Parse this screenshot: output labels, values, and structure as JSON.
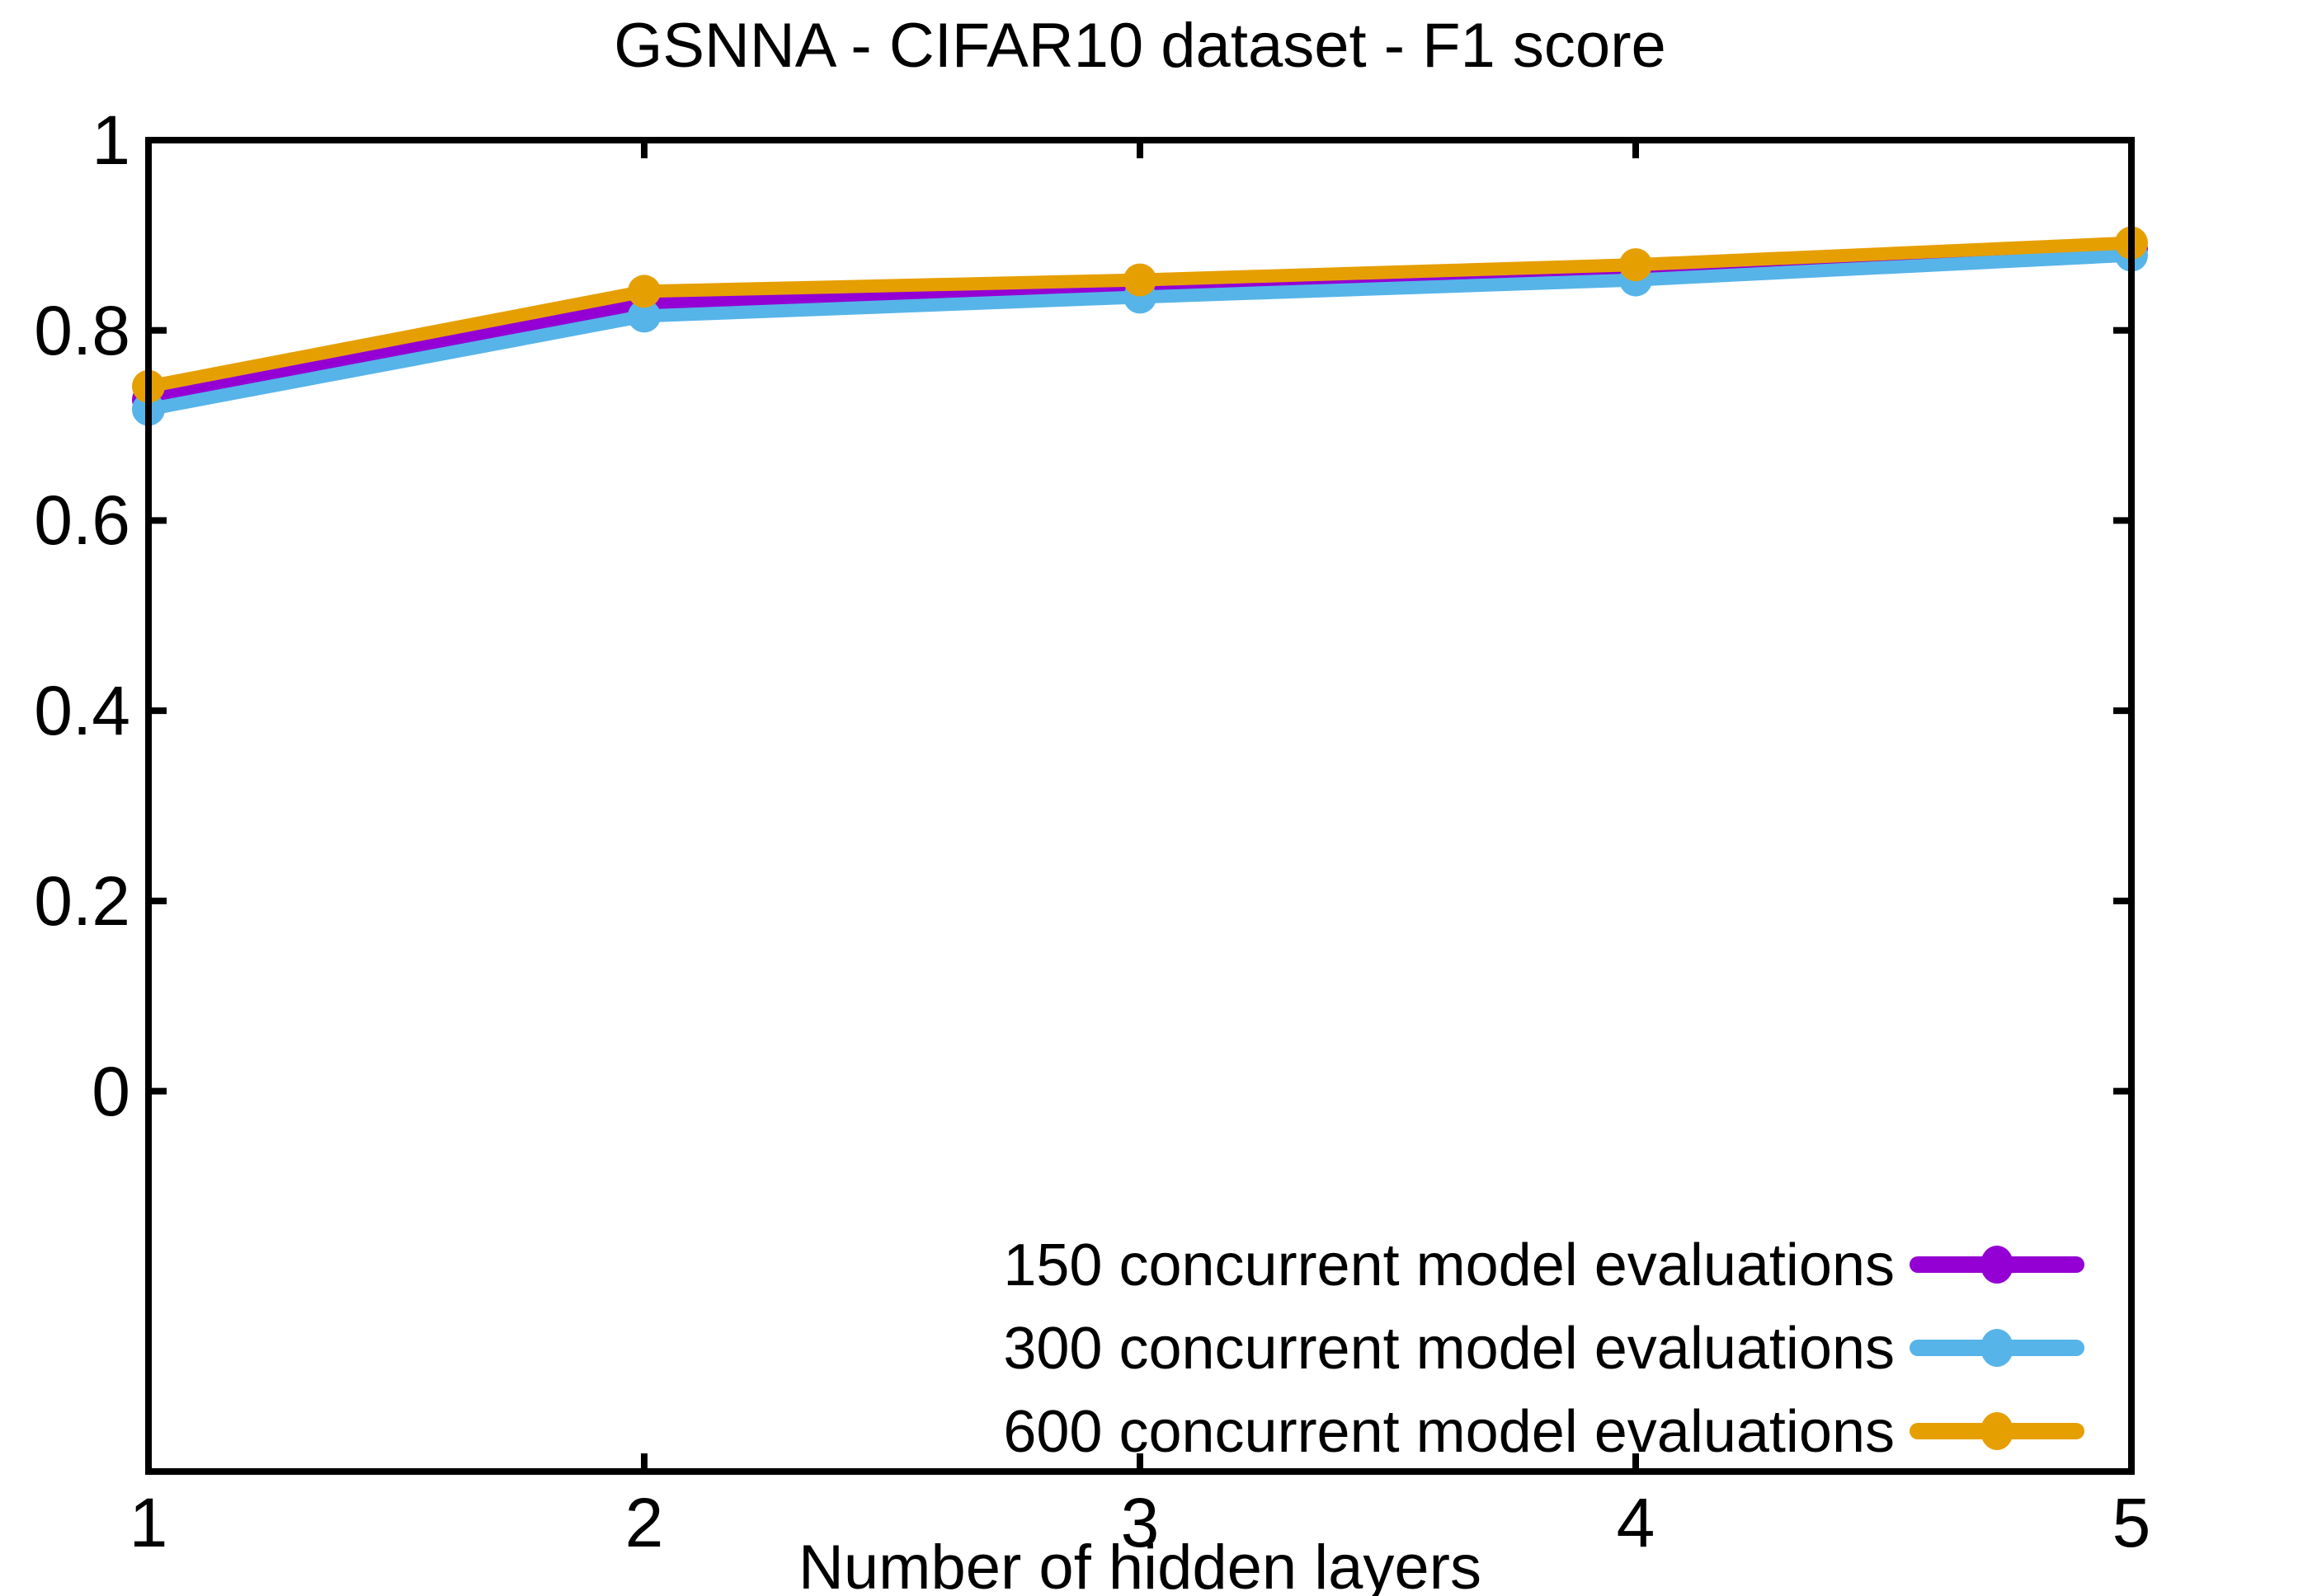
{
  "chart_data": {
    "type": "line",
    "title": "GSNNA - CIFAR10 dataset - F1 score",
    "xlabel": "Number of hidden layers",
    "x": [
      1,
      2,
      3,
      4,
      5
    ],
    "xlim": [
      1,
      5
    ],
    "ylim": [
      -0.4,
      1
    ],
    "xtick_values": [
      1,
      2,
      3,
      4,
      5
    ],
    "xtick_labels": [
      "1",
      "2",
      "3",
      "4",
      "5"
    ],
    "ytick_values": [
      0,
      0.2,
      0.4,
      0.6,
      0.8,
      1
    ],
    "ytick_labels": [
      "0",
      "0.2",
      "0.4",
      "0.6",
      "0.8",
      "1"
    ],
    "grid": false,
    "legend_position": "inside-bottom-right",
    "marker": "circle",
    "colors": {
      "frame": "#000000",
      "background": "#FFFFFF",
      "text": "#000000"
    },
    "series": [
      {
        "name": "150 concurrent model evaluations",
        "color": "#9400D3",
        "values": [
          0.727,
          0.828,
          0.842,
          0.86,
          0.886
        ]
      },
      {
        "name": "300 concurrent model evaluations",
        "color": "#56B4E9",
        "values": [
          0.717,
          0.815,
          0.835,
          0.853,
          0.879
        ]
      },
      {
        "name": "600 concurrent model evaluations",
        "color": "#E69F00",
        "values": [
          0.741,
          0.841,
          0.853,
          0.869,
          0.892
        ]
      }
    ]
  }
}
